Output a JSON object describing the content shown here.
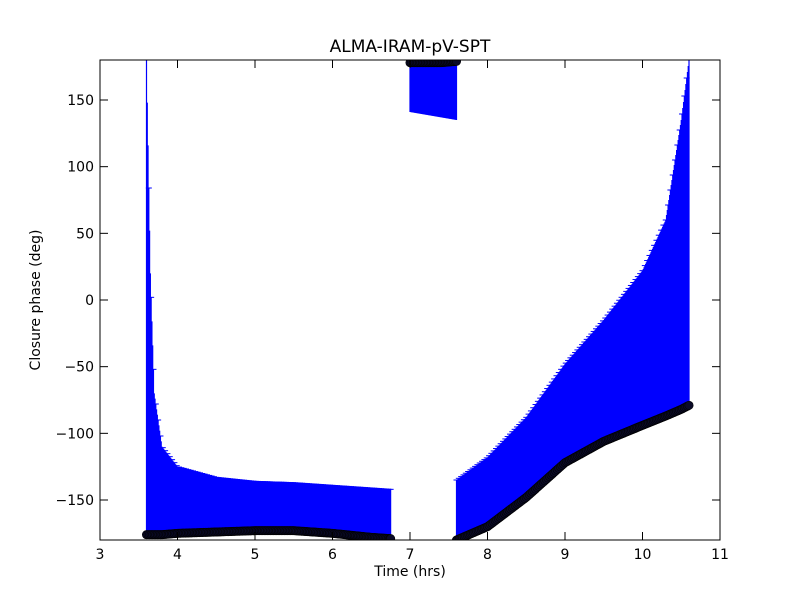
{
  "chart_data": {
    "type": "scatter",
    "title": "ALMA-IRAM-pV-SPT",
    "xlabel": "Time (hrs)",
    "ylabel": "Closure phase (deg)",
    "xlim": [
      3,
      11
    ],
    "ylim": [
      -180,
      180
    ],
    "xticks": [
      3,
      4,
      5,
      6,
      7,
      8,
      9,
      10,
      11
    ],
    "xtick_labels": [
      "3",
      "4",
      "5",
      "6",
      "7",
      "8",
      "9",
      "10",
      "11"
    ],
    "yticks": [
      -150,
      -100,
      -50,
      0,
      50,
      100,
      150
    ],
    "ytick_labels": [
      "−150",
      "−100",
      "−50",
      "0",
      "50",
      "100",
      "150"
    ],
    "grid": false,
    "colors": {
      "errorbar": "#0000ff",
      "marker": "#0a0a28",
      "axes": "#000000"
    },
    "series": [
      {
        "role": "measurement-with-errorbars",
        "x": [
          3.6,
          3.65,
          3.7,
          3.8,
          4.0,
          4.5,
          5.0,
          5.5,
          6.0,
          6.5,
          6.75
        ],
        "y": [
          -176,
          -176,
          -176,
          -176,
          -175,
          -174,
          -173,
          -173,
          -175,
          -178,
          -179
        ],
        "upper": [
          180,
          20,
          -70,
          -110,
          -125,
          -133,
          -136,
          -137,
          -139,
          -141,
          -142
        ]
      },
      {
        "role": "measurement-with-errorbars",
        "x": [
          7.0,
          7.2,
          7.4,
          7.6
        ],
        "y": [
          178,
          178,
          178,
          179
        ],
        "lower": [
          141,
          139,
          137,
          135
        ]
      },
      {
        "role": "measurement-with-errorbars",
        "x": [
          7.6,
          8.0,
          8.5,
          9.0,
          9.5,
          10.0,
          10.3,
          10.5,
          10.6
        ],
        "y": [
          -180,
          -170,
          -148,
          -122,
          -106,
          -94,
          -87,
          -82,
          -79
        ],
        "upper": [
          -135,
          -118,
          -88,
          -48,
          -15,
          22,
          60,
          135,
          180
        ]
      }
    ]
  }
}
